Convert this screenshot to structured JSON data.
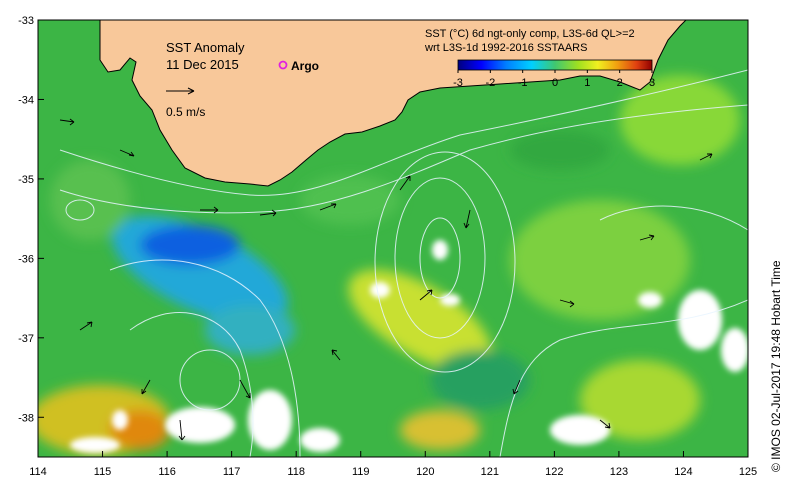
{
  "map": {
    "title": "SST Anomaly",
    "date": "11 Dec 2015",
    "argo_label": "Argo",
    "scale_label": "0.5 m/s",
    "product_line1": "SST (°C) 6d ngt-only comp, L3S-6d QL>=2",
    "product_line2": "wrt L3S-1d 1992-2016 SSTAARS",
    "credit": "©  IMOS 02-Jul-2017 19:48 Hobart Time",
    "x_ticks": [
      "114",
      "115",
      "116",
      "117",
      "118",
      "119",
      "120",
      "121",
      "122",
      "123",
      "124",
      "125"
    ],
    "y_ticks": [
      "-33",
      "-34",
      "-35",
      "-36",
      "-37",
      "-38"
    ],
    "colorbar_ticks": [
      "-3",
      "-2",
      "-1",
      "0",
      "1",
      "2",
      "3"
    ],
    "colorbar_range": [
      -3,
      3
    ],
    "lon_range": [
      114,
      125
    ],
    "lat_range": [
      -38.5,
      -33
    ],
    "colors": {
      "land": "#f8c89a",
      "ocean_base": "#3fb84a",
      "argo_marker": "#e020e0",
      "contour": "#e8f4ff",
      "vector": "#000000"
    },
    "colormap": [
      "#00007f",
      "#0000ff",
      "#0080ff",
      "#00c8ff",
      "#40c8a0",
      "#38b848",
      "#80d030",
      "#f0f020",
      "#f0a010",
      "#e05010",
      "#a00000"
    ]
  }
}
